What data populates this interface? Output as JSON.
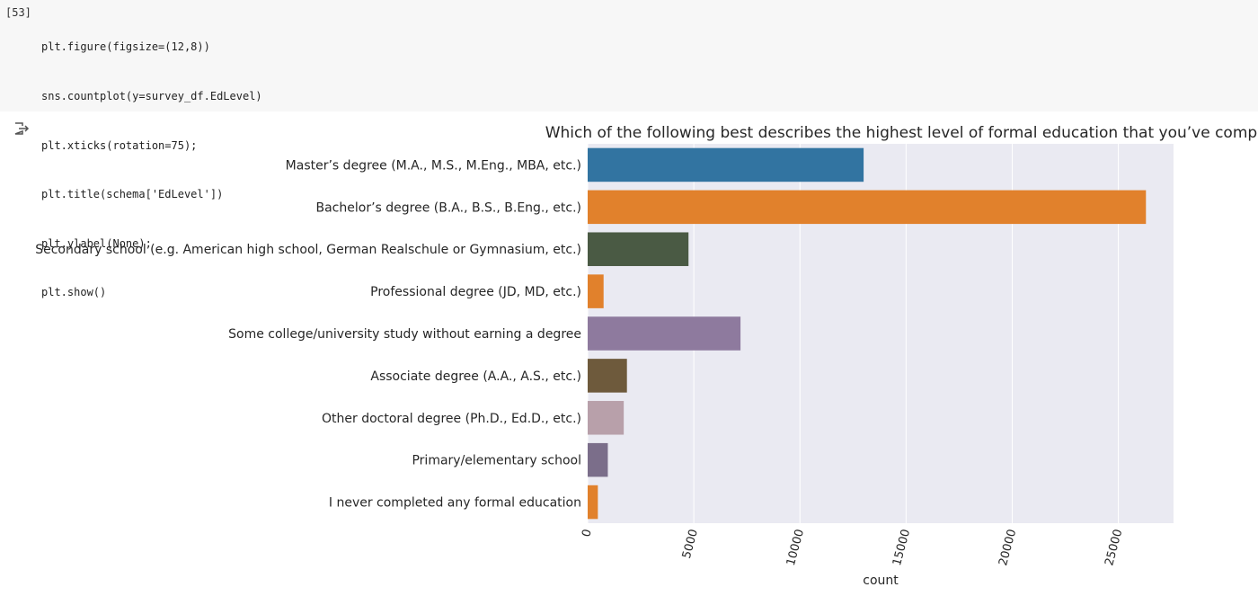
{
  "cell": {
    "prompt": "[53]",
    "code_lines": [
      "plt.figure(figsize=(12,8))",
      "sns.countplot(y=survey_df.EdLevel)",
      "plt.xticks(rotation=75);",
      "plt.title(schema['EdLevel'])",
      "plt.ylabel(None);",
      "plt.show()"
    ]
  },
  "chart_data": {
    "type": "bar",
    "orientation": "horizontal",
    "title": "Which of the following best describes the highest level of formal education that you’ve completed?",
    "xlabel": "count",
    "ylabel": "",
    "xlim": [
      0,
      27600
    ],
    "xticks": [
      0,
      5000,
      10000,
      15000,
      20000,
      25000
    ],
    "xtick_labels": [
      "0",
      "5000",
      "10000",
      "15000",
      "20000",
      "25000"
    ],
    "grid": true,
    "categories": [
      "Master’s degree (M.A., M.S., M.Eng., MBA, etc.)",
      "Bachelor’s degree (B.A., B.S., B.Eng., etc.)",
      "Secondary school (e.g. American high school, German Realschule or Gymnasium, etc.)",
      "Professional degree (JD, MD, etc.)",
      "Some college/university study without earning a degree",
      "Associate degree (A.A., A.S., etc.)",
      "Other doctoral degree (Ph.D., Ed.D., etc.)",
      "Primary/elementary school",
      "I never completed any formal education"
    ],
    "values": [
      13000,
      26300,
      4750,
      750,
      7200,
      1850,
      1700,
      950,
      480
    ],
    "colors": [
      "#3274a1",
      "#e1812c",
      "#4a5a44",
      "#e1812c",
      "#8e7a9e",
      "#6e5a3c",
      "#b8a0aa",
      "#7b6e8a",
      "#e1812c"
    ]
  }
}
